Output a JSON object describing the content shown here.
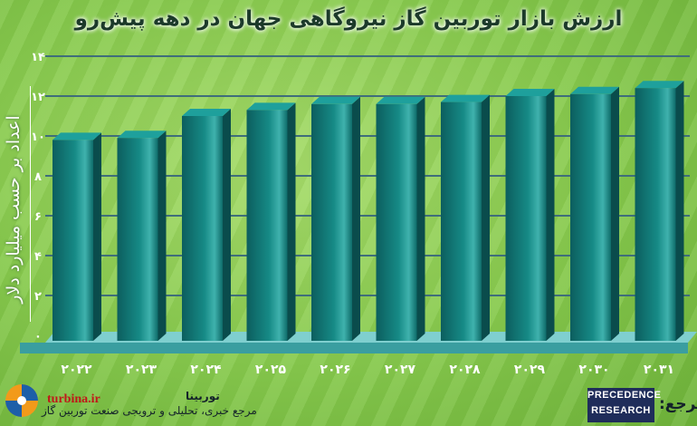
{
  "chart_data": {
    "type": "bar",
    "title": "ارزش بازار توربین گاز نیروگاهی جهان در دهه پیش‌رو",
    "ylabel": "اعداد بر حسب میلیارد دلار",
    "xlabel": "",
    "categories": [
      "۲۰۲۲",
      "۲۰۲۳",
      "۲۰۲۴",
      "۲۰۲۵",
      "۲۰۲۶",
      "۲۰۲۷",
      "۲۰۲۸",
      "۲۰۲۹",
      "۲۰۳۰",
      "۲۰۳۱"
    ],
    "values": [
      9.8,
      9.9,
      11.0,
      11.3,
      11.6,
      11.6,
      11.7,
      12.0,
      12.1,
      12.4
    ],
    "ylim": [
      0,
      14
    ],
    "yticks": [
      0,
      2,
      4,
      6,
      8,
      10,
      12,
      14
    ],
    "ytick_labels": [
      "۰",
      "۲",
      "۴",
      "۶",
      "۸",
      "۱۰",
      "۱۲",
      "۱۴"
    ],
    "grid": true,
    "bar_color": "#137a78"
  },
  "footer": {
    "site": "turbina.ir",
    "name": "توربینا",
    "description": "مرجع خبری، تحلیلی و ترویجی صنعت توربین گاز",
    "source_label": "مرجع:",
    "source_logo": [
      "PRECEDENCE",
      "RESEARCH"
    ]
  }
}
